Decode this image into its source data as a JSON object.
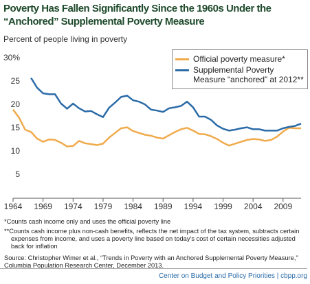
{
  "chart_data": {
    "type": "line",
    "title": "Poverty Has Fallen Significantly Since the 1960s Under the “Anchored” Supplemental Poverty Measure",
    "subtitle": "Percent of people living in poverty",
    "x": [
      1964,
      1965,
      1966,
      1967,
      1968,
      1969,
      1970,
      1971,
      1972,
      1973,
      1974,
      1975,
      1976,
      1977,
      1978,
      1979,
      1980,
      1981,
      1982,
      1983,
      1984,
      1985,
      1986,
      1987,
      1988,
      1989,
      1990,
      1991,
      1992,
      1993,
      1994,
      1995,
      1996,
      1997,
      1998,
      1999,
      2000,
      2001,
      2002,
      2003,
      2004,
      2005,
      2006,
      2007,
      2008,
      2009,
      2010,
      2011,
      2012
    ],
    "xlim": [
      1964,
      2012
    ],
    "xticks": [
      1964,
      1969,
      1974,
      1979,
      1984,
      1989,
      1994,
      1999,
      2004,
      2009
    ],
    "ylim": [
      0,
      30
    ],
    "yticks": [
      5,
      10,
      15,
      20,
      25,
      {
        "value": 30,
        "label": "30%"
      }
    ],
    "series": [
      {
        "name": "Official poverty measure*",
        "color": "#f0aa4c",
        "values": [
          19.0,
          17.3,
          14.7,
          14.2,
          12.8,
          12.1,
          12.6,
          12.5,
          11.9,
          11.1,
          11.2,
          12.3,
          11.8,
          11.6,
          11.4,
          11.7,
          13.0,
          14.0,
          15.0,
          15.2,
          14.4,
          14.0,
          13.6,
          13.4,
          13.0,
          12.8,
          13.5,
          14.2,
          14.8,
          15.1,
          14.5,
          13.8,
          13.7,
          13.3,
          12.7,
          11.9,
          11.3,
          11.7,
          12.1,
          12.5,
          12.7,
          12.6,
          12.3,
          12.5,
          13.2,
          14.3,
          15.1,
          15.0,
          15.0
        ]
      },
      {
        "name": "Supplemental Poverty Measure “anchored” at 2012**",
        "color": "#2a6ba8",
        "values": [
          null,
          null,
          null,
          25.8,
          23.7,
          22.5,
          22.3,
          22.3,
          20.3,
          19.2,
          20.3,
          19.3,
          18.6,
          18.7,
          18.0,
          17.4,
          19.4,
          20.5,
          21.7,
          22.0,
          21.0,
          20.7,
          20.1,
          19.0,
          18.8,
          18.5,
          19.3,
          19.5,
          19.8,
          20.7,
          19.5,
          17.5,
          17.5,
          16.8,
          15.6,
          14.9,
          14.5,
          14.7,
          15.0,
          15.2,
          14.8,
          14.8,
          14.5,
          14.5,
          14.5,
          15.0,
          15.3,
          15.5,
          16.0
        ]
      }
    ],
    "notes": [
      "*Counts cash income only and uses the official poverty line",
      "**Counts cash income plus non-cash benefits, reflects the net impact of the tax system, subtracts certain expenses from income, and uses a poverty line based on today’s cost of certain necessities adjusted back for inflation"
    ],
    "source": "Source: Christopher Wimer et al., “Trends in Poverty with an Anchored Supplemental Poverty Measure,” Columbia Population Research Center, December 2013.",
    "footer": "Center on Budget and Policy Priorities | cbpp.org"
  }
}
